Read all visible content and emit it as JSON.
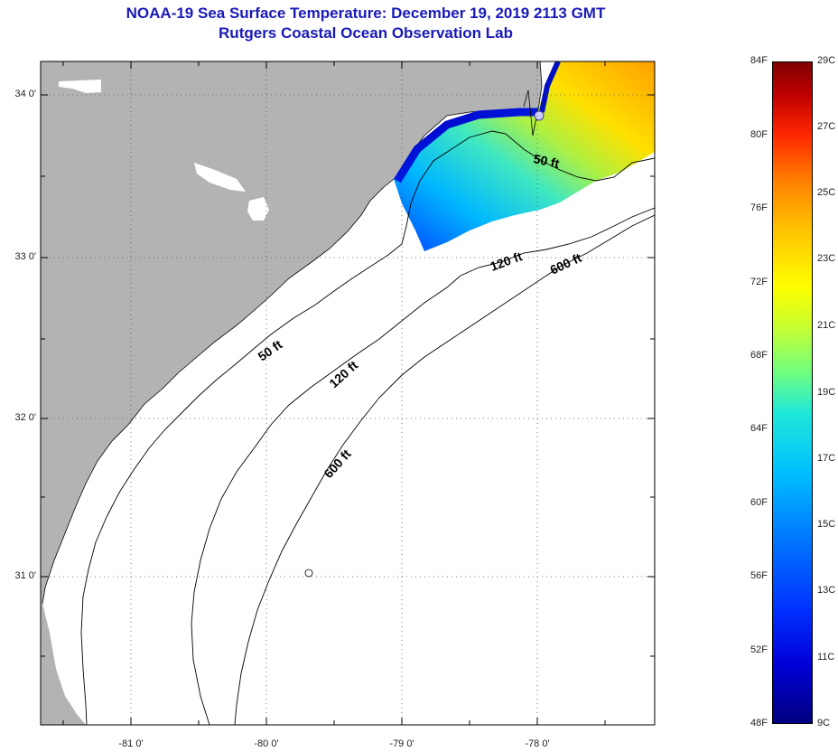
{
  "header": {
    "title": "NOAA-19 Sea Surface Temperature:  December 19, 2019 2113 GMT",
    "subtitle": "Rutgers Coastal Ocean Observation Lab"
  },
  "map": {
    "lat_labels": [
      "34 0'",
      "33 0'",
      "32 0'",
      "31 0'"
    ],
    "lon_labels": [
      "-81 0'",
      "-80 0'",
      "-79 0'",
      "-78 0'"
    ],
    "contours": [
      {
        "label": "50 ft",
        "placement": "north"
      },
      {
        "label": "120 ft",
        "placement": "north"
      },
      {
        "label": "600 ft",
        "placement": "north"
      },
      {
        "label": "50 ft",
        "placement": "center"
      },
      {
        "label": "120 ft",
        "placement": "center"
      },
      {
        "label": "600 ft",
        "placement": "south"
      }
    ],
    "colors": {
      "land": "#b3b3b3",
      "water": "#ffffff"
    }
  },
  "colorbar": {
    "fahrenheit": [
      "84F",
      "80F",
      "76F",
      "72F",
      "68F",
      "64F",
      "60F",
      "56F",
      "52F",
      "48F"
    ],
    "celsius": [
      "29C",
      "27C",
      "25C",
      "23C",
      "21C",
      "19C",
      "17C",
      "15C",
      "13C",
      "11C",
      "9C"
    ]
  }
}
